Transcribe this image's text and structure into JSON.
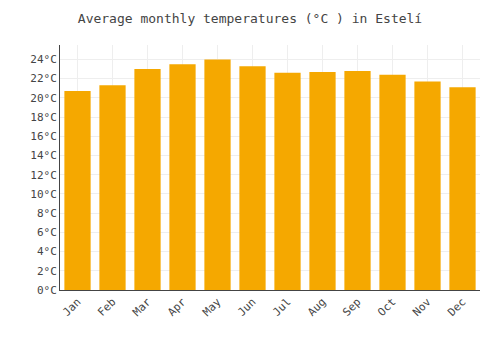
{
  "chart_data": {
    "type": "bar",
    "title": "Average monthly temperatures (°C ) in Estelí",
    "categories": [
      "Jan",
      "Feb",
      "Mar",
      "Apr",
      "May",
      "Jun",
      "Jul",
      "Aug",
      "Sep",
      "Oct",
      "Nov",
      "Dec"
    ],
    "values": [
      20.7,
      21.3,
      23.0,
      23.5,
      24.0,
      23.3,
      22.6,
      22.7,
      22.8,
      22.4,
      21.7,
      21.1
    ],
    "color": "#F5A800",
    "ylim": [
      0,
      25.5
    ],
    "yticks": [
      {
        "value": 0,
        "label": "0°C"
      },
      {
        "value": 2,
        "label": "2°C"
      },
      {
        "value": 4,
        "label": "4°C"
      },
      {
        "value": 6,
        "label": "6°C"
      },
      {
        "value": 8,
        "label": "8°C"
      },
      {
        "value": 10,
        "label": "10°C"
      },
      {
        "value": 12,
        "label": "12°C"
      },
      {
        "value": 14,
        "label": "14°C"
      },
      {
        "value": 16,
        "label": "16°C"
      },
      {
        "value": 18,
        "label": "18°C"
      },
      {
        "value": 20,
        "label": "20°C"
      },
      {
        "value": 22,
        "label": "22°C"
      },
      {
        "value": 24,
        "label": "24°C"
      }
    ],
    "grid": true
  }
}
